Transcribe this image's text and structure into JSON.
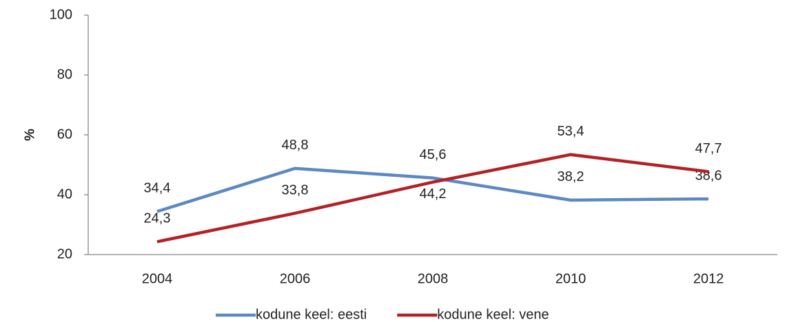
{
  "chart_data": {
    "type": "line",
    "y_label": "%",
    "categories": [
      "2004",
      "2006",
      "2008",
      "2010",
      "2012"
    ],
    "series": [
      {
        "name": "kodune keel: eesti",
        "color": "#5b89c4",
        "values": [
          34.4,
          48.8,
          45.6,
          38.2,
          38.6
        ],
        "value_labels": [
          "34,4",
          "48,8",
          "45,6",
          "38,2",
          "38,6"
        ]
      },
      {
        "name": "kodune keel: vene",
        "color": "#b52025",
        "values": [
          24.3,
          33.8,
          44.2,
          53.4,
          47.7
        ],
        "value_labels": [
          "24,3",
          "33,8",
          "44,2",
          "53,4",
          "47,7"
        ]
      }
    ],
    "ylim": [
      20,
      100
    ],
    "yticks": [
      20,
      40,
      60,
      80,
      100
    ],
    "grid": false,
    "legend": "bottom"
  }
}
